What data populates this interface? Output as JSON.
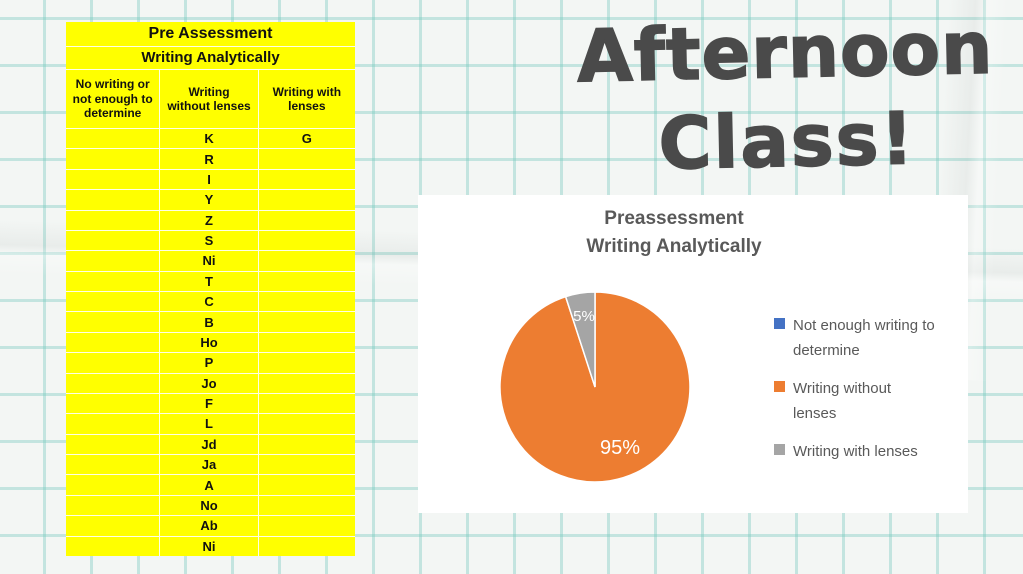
{
  "handwriting": {
    "line1": "Afternoon",
    "line2": "Class!",
    "color": "#4a4a4a"
  },
  "table": {
    "title": "Pre Assessment",
    "subtitle": "Writing Analytically",
    "background_color": "#FFFF00",
    "columns": [
      "No writing or\nnot enough to\ndetermine",
      "Writing\nwithout lenses",
      "Writing with\nlenses"
    ],
    "rows": [
      [
        "",
        "K",
        "G"
      ],
      [
        "",
        "R",
        ""
      ],
      [
        "",
        "I",
        ""
      ],
      [
        "",
        "Y",
        ""
      ],
      [
        "",
        "Z",
        ""
      ],
      [
        "",
        "S",
        ""
      ],
      [
        "",
        "Ni",
        ""
      ],
      [
        "",
        "T",
        ""
      ],
      [
        "",
        "C",
        ""
      ],
      [
        "",
        "B",
        ""
      ],
      [
        "",
        "Ho",
        ""
      ],
      [
        "",
        "P",
        ""
      ],
      [
        "",
        "Jo",
        ""
      ],
      [
        "",
        "F",
        ""
      ],
      [
        "",
        "L",
        ""
      ],
      [
        "",
        "Jd",
        ""
      ],
      [
        "",
        "Ja",
        ""
      ],
      [
        "",
        "A",
        ""
      ],
      [
        "",
        "No",
        ""
      ],
      [
        "",
        "Ab",
        ""
      ],
      [
        "",
        "Ni",
        ""
      ]
    ]
  },
  "chart": {
    "title_line1": "Preassessment",
    "title_line2": "Writing Analytically",
    "label_small": "5%",
    "label_large": "95%",
    "text_color": "#595959"
  },
  "chart_data": {
    "type": "pie",
    "title": "Preassessment Writing Analytically",
    "labels": [
      "Not enough writing to determine",
      "Writing without lenses",
      "Writing with lenses"
    ],
    "values": [
      0,
      95,
      5
    ],
    "unit": "%",
    "colors": [
      "#4472C4",
      "#ED7D31",
      "#A5A5A5"
    ],
    "data_labels": [
      "",
      "95%",
      "5%"
    ],
    "legend_position": "right",
    "legend_wrapped_labels": [
      "Not enough writing to\ndetermine",
      "Writing without\nlenses",
      "Writing with lenses"
    ],
    "start_angle_deg": 0,
    "direction": "clockwise"
  },
  "colors": {
    "paper": "#f3f6f4",
    "grid_line": "#9fd4cb",
    "slice_border": "#ffffff"
  }
}
